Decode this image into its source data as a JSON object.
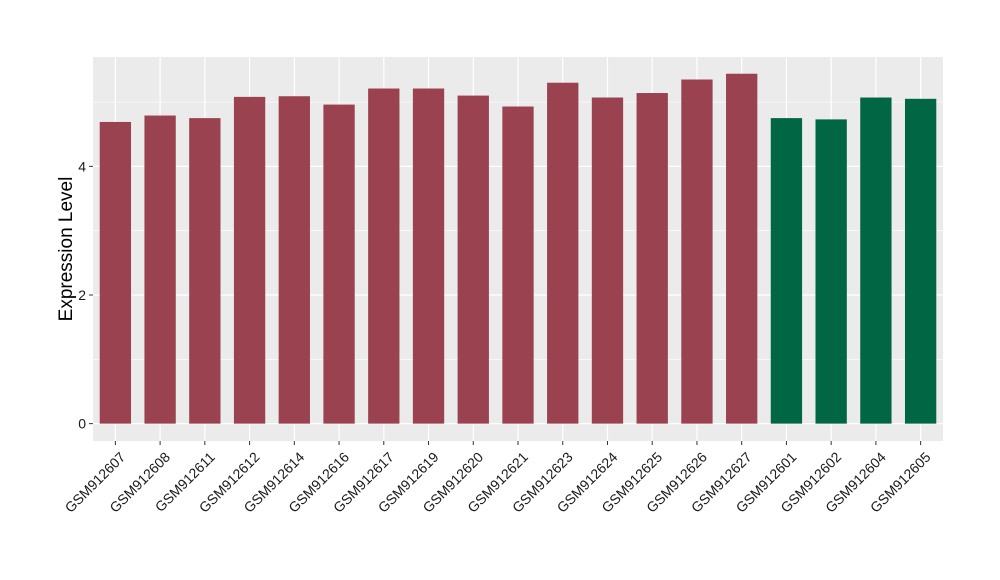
{
  "chart_data": {
    "type": "bar",
    "ylabel": "Expression Level",
    "xlabel": "",
    "ylim": [
      -0.27,
      5.7
    ],
    "yticks": [
      0,
      2,
      4
    ],
    "grid": true,
    "legend": "none",
    "background": "#ebebeb",
    "colors": {
      "group1": "#9a4250",
      "group2": "#006643"
    },
    "categories": [
      "GSM912607",
      "GSM912608",
      "GSM912611",
      "GSM912612",
      "GSM912614",
      "GSM912616",
      "GSM912617",
      "GSM912619",
      "GSM912620",
      "GSM912621",
      "GSM912623",
      "GSM912624",
      "GSM912625",
      "GSM912626",
      "GSM912627",
      "GSM912601",
      "GSM912602",
      "GSM912604",
      "GSM912605"
    ],
    "values": [
      4.69,
      4.79,
      4.75,
      5.08,
      5.09,
      4.96,
      5.21,
      5.21,
      5.1,
      4.93,
      5.3,
      5.07,
      5.14,
      5.35,
      5.44,
      4.75,
      4.73,
      5.07,
      5.05
    ],
    "groups": [
      "group1",
      "group1",
      "group1",
      "group1",
      "group1",
      "group1",
      "group1",
      "group1",
      "group1",
      "group1",
      "group1",
      "group1",
      "group1",
      "group1",
      "group1",
      "group2",
      "group2",
      "group2",
      "group2"
    ]
  }
}
